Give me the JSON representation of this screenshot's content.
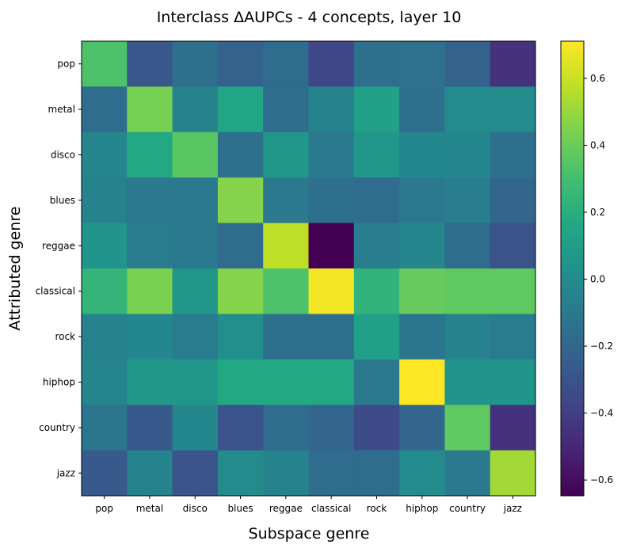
{
  "chart_data": {
    "type": "heatmap",
    "title": "Interclass ΔAUPCs - 4 concepts, layer 10",
    "xlabel": "Subspace genre",
    "ylabel": "Attributed genre",
    "x_categories": [
      "pop",
      "metal",
      "disco",
      "blues",
      "reggae",
      "classical",
      "rock",
      "hiphop",
      "country",
      "jazz"
    ],
    "y_categories": [
      "pop",
      "metal",
      "disco",
      "blues",
      "reggae",
      "classical",
      "rock",
      "hiphop",
      "country",
      "jazz"
    ],
    "values": [
      [
        0.33,
        -0.28,
        -0.15,
        -0.22,
        -0.17,
        -0.36,
        -0.15,
        -0.14,
        -0.22,
        -0.45
      ],
      [
        -0.17,
        0.43,
        -0.05,
        0.15,
        -0.17,
        -0.05,
        0.12,
        -0.15,
        0.0,
        0.0
      ],
      [
        -0.03,
        0.17,
        0.36,
        -0.15,
        0.07,
        -0.1,
        0.06,
        -0.02,
        -0.03,
        -0.15
      ],
      [
        -0.05,
        -0.1,
        -0.1,
        0.46,
        -0.1,
        -0.15,
        -0.17,
        -0.1,
        -0.07,
        -0.2
      ],
      [
        0.05,
        -0.08,
        -0.1,
        -0.17,
        0.58,
        -0.647,
        -0.07,
        -0.03,
        -0.17,
        -0.3
      ],
      [
        0.24,
        0.44,
        0.07,
        0.46,
        0.33,
        0.69,
        0.23,
        0.39,
        0.37,
        0.37
      ],
      [
        -0.05,
        -0.02,
        -0.08,
        0.02,
        -0.15,
        -0.15,
        0.12,
        -0.12,
        -0.05,
        -0.08
      ],
      [
        -0.04,
        0.07,
        0.07,
        0.17,
        0.17,
        0.17,
        -0.1,
        0.71,
        0.05,
        0.05
      ],
      [
        -0.12,
        -0.27,
        -0.02,
        -0.3,
        -0.17,
        -0.2,
        -0.34,
        -0.2,
        0.37,
        -0.45
      ],
      [
        -0.27,
        -0.05,
        -0.3,
        0.0,
        -0.05,
        -0.17,
        -0.17,
        0.0,
        -0.1,
        0.52
      ]
    ],
    "colormap": "viridis",
    "vmin": -0.647,
    "vmax": 0.711,
    "colorbar_ticks": [
      -0.6,
      -0.4,
      -0.2,
      0.0,
      0.2,
      0.4,
      0.6
    ],
    "colorbar_tick_labels": [
      "−0.6",
      "−0.4",
      "−0.2",
      "0.0",
      "0.2",
      "0.4",
      "0.6"
    ],
    "grid": false,
    "legend": "colorbar-right"
  }
}
